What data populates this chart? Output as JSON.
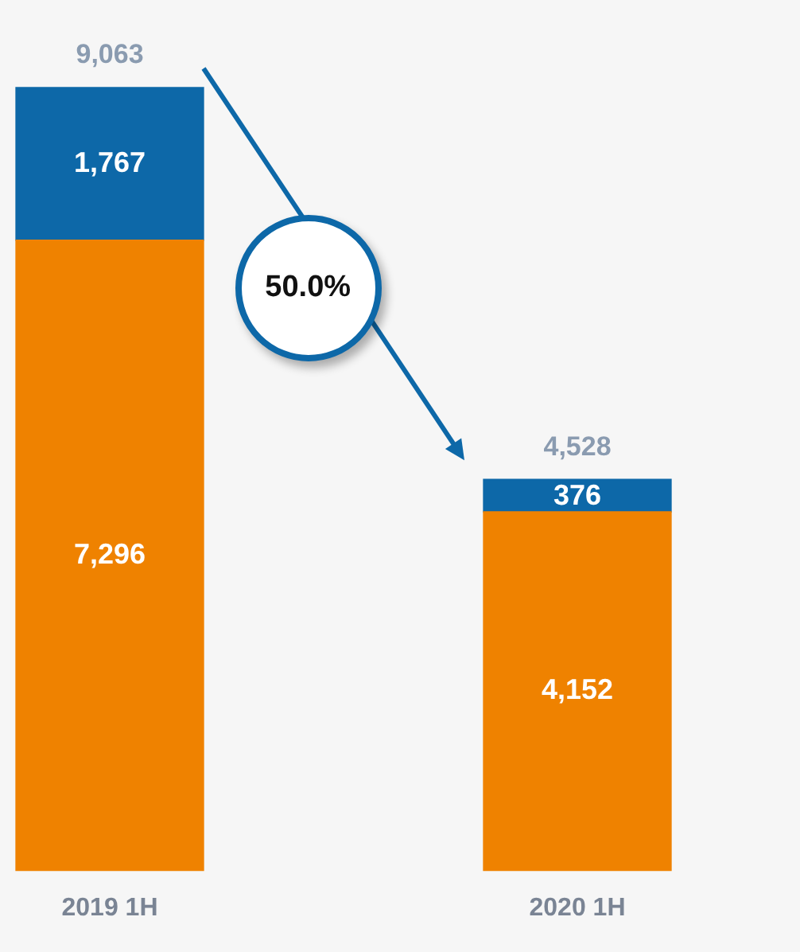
{
  "chart_data": {
    "type": "bar",
    "stacked": true,
    "categories": [
      "2019 1H",
      "2020 1H"
    ],
    "series": [
      {
        "color": "#ef8200",
        "values": [
          7296,
          4152
        ],
        "value_labels": [
          "7,296",
          "4,152"
        ]
      },
      {
        "color": "#0d68a8",
        "values": [
          1767,
          376
        ],
        "value_labels": [
          "1,767",
          "376"
        ]
      }
    ],
    "totals": [
      "9,063",
      "4,528"
    ],
    "legend": false,
    "grid": false,
    "tick_labels": "x",
    "annotations": [
      "50.0%"
    ]
  }
}
